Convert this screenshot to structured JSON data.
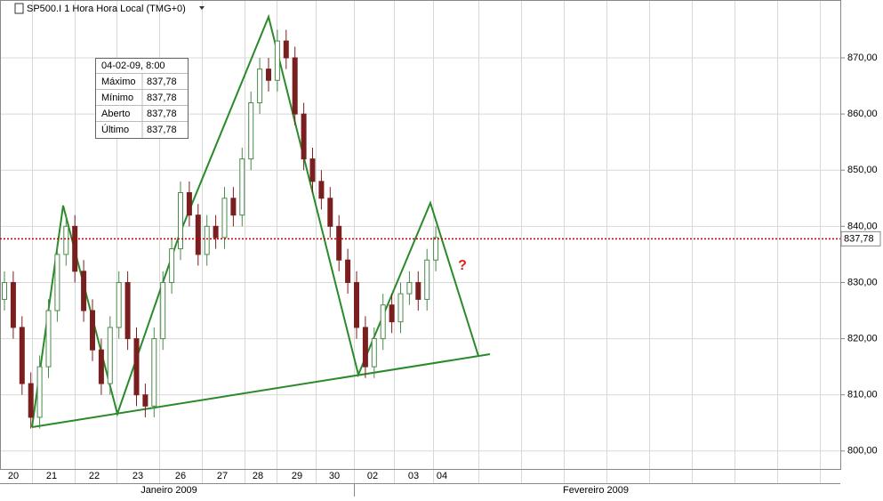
{
  "chart_data": {
    "type": "candlestick",
    "title": "SP500.I 1 Hora Hora Local (TMG+0)",
    "ylim": [
      796.8,
      880.3
    ],
    "yticks": [
      {
        "value": 800,
        "label": "800,00"
      },
      {
        "value": 810,
        "label": "810,00"
      },
      {
        "value": 820,
        "label": "820,00"
      },
      {
        "value": 830,
        "label": "830,00"
      },
      {
        "value": 840,
        "label": "840,00"
      },
      {
        "value": 850,
        "label": "850,00"
      },
      {
        "value": 860,
        "label": "860,00"
      },
      {
        "value": 870,
        "label": "870,00"
      }
    ],
    "day_labels": [
      "20",
      "21",
      "22",
      "23",
      "26",
      "27",
      "28",
      "29",
      "30",
      "02",
      "03",
      "04"
    ],
    "month_labels": [
      "Janeiro 2009",
      "Fevereiro 2009"
    ],
    "last_price": {
      "value": 837.78,
      "label": "837,78"
    },
    "annotation": "?",
    "tooltip": {
      "header": "04-02-09, 8:00",
      "rows": [
        [
          "Máximo",
          "837,78"
        ],
        [
          "Mínimo",
          "837,78"
        ],
        [
          "Aberto",
          "837,78"
        ],
        [
          "Último",
          "837,78"
        ]
      ]
    },
    "up_color": "#4a8a4a",
    "down_color": "#7a1f1f",
    "open": [
      827,
      830,
      822,
      812,
      806,
      815,
      825,
      835,
      840,
      832,
      825,
      818,
      812,
      822,
      830,
      820,
      810,
      808,
      820,
      830,
      836,
      846,
      842,
      835,
      840,
      838,
      845,
      842,
      852,
      862,
      868,
      866,
      873,
      870,
      860,
      852,
      848,
      845,
      840,
      834,
      830,
      822,
      815,
      820,
      826,
      823,
      828,
      830,
      827,
      834
    ],
    "high": [
      832,
      832,
      824,
      814,
      817,
      827,
      837,
      842,
      842,
      834,
      827,
      820,
      824,
      832,
      832,
      822,
      812,
      822,
      832,
      838,
      848,
      848,
      844,
      842,
      842,
      847,
      847,
      854,
      864,
      870,
      870,
      875,
      875,
      872,
      862,
      854,
      850,
      847,
      842,
      836,
      832,
      824,
      822,
      828,
      828,
      830,
      832,
      832,
      836,
      840
    ],
    "low": [
      825,
      820,
      810,
      804,
      804,
      813,
      823,
      833,
      830,
      823,
      816,
      810,
      810,
      820,
      818,
      808,
      806,
      806,
      818,
      828,
      834,
      840,
      833,
      833,
      836,
      836,
      840,
      840,
      850,
      860,
      864,
      864,
      868,
      858,
      850,
      846,
      843,
      838,
      832,
      828,
      820,
      813,
      813,
      818,
      821,
      821,
      826,
      825,
      825,
      832
    ],
    "close": [
      830,
      822,
      812,
      806,
      815,
      825,
      835,
      840,
      832,
      825,
      818,
      812,
      822,
      830,
      820,
      810,
      808,
      820,
      830,
      836,
      846,
      842,
      835,
      840,
      838,
      845,
      842,
      852,
      862,
      868,
      866,
      873,
      870,
      860,
      852,
      848,
      845,
      840,
      834,
      830,
      822,
      815,
      820,
      826,
      823,
      828,
      830,
      827,
      834,
      838
    ]
  }
}
